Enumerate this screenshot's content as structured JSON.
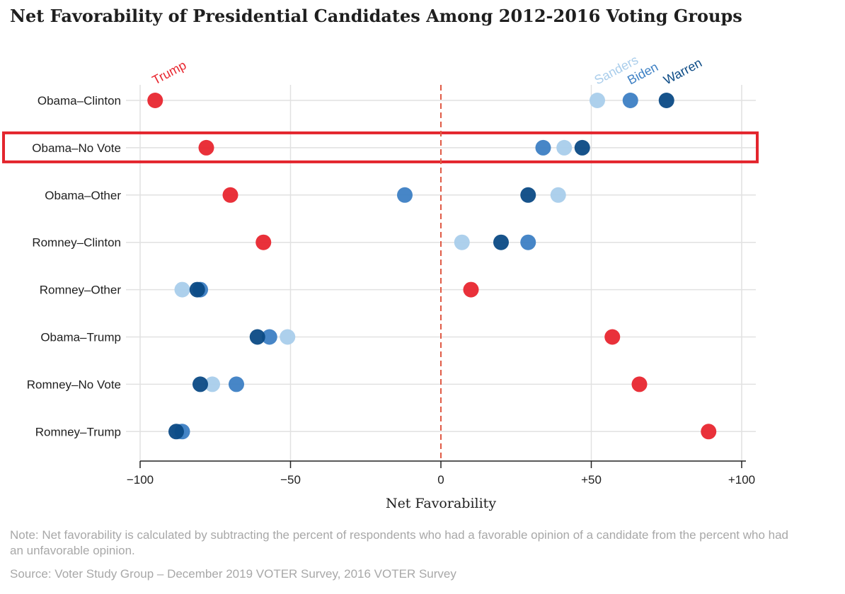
{
  "title": "Net Favorability of Presidential Candidates Among 2012-2016 Voting Groups",
  "note": "Note: Net favorability is calculated by subtracting the percent of respondents who had a favorable opinion of a candidate from the percent who had an unfavorable opinion.",
  "source": "Source: Voter Study Group – December 2019 VOTER Survey, 2016 VOTER Survey",
  "chart_data": {
    "type": "scatter",
    "title": "Net Favorability of Presidential Candidates Among 2012-2016 Voting Groups",
    "xlabel": "Net Favorability",
    "ylabel": "",
    "xlim": [
      -100,
      100
    ],
    "x_ticks": [
      -100,
      -50,
      0,
      50,
      100
    ],
    "x_tick_labels": [
      "−100",
      "−50",
      "0",
      "+50",
      "+100"
    ],
    "grid": true,
    "categories": [
      "Obama–Clinton",
      "Obama–No Vote",
      "Obama–Other",
      "Romney–Clinton",
      "Romney–Other",
      "Obama–Trump",
      "Romney–No Vote",
      "Romney–Trump"
    ],
    "highlighted_category": "Obama–No Vote",
    "reference_line_x": 0,
    "series": [
      {
        "name": "Trump",
        "color": "#e8262f",
        "values": [
          -95,
          -78,
          -70,
          -59,
          10,
          57,
          66,
          89
        ]
      },
      {
        "name": "Sanders",
        "color": "#a9cdeb",
        "values": [
          52,
          41,
          39,
          7,
          -86,
          -51,
          -76,
          -87
        ]
      },
      {
        "name": "Biden",
        "color": "#3d80c4",
        "values": [
          63,
          34,
          -12,
          29,
          -80,
          -57,
          -68,
          -86
        ]
      },
      {
        "name": "Warren",
        "color": "#0b4a85",
        "values": [
          75,
          47,
          29,
          20,
          -81,
          -61,
          -80,
          -88
        ]
      }
    ],
    "colors": {
      "highlight_box": "#e3252d",
      "reference_line": "#e05a45",
      "grid": "#e1e1e1"
    }
  }
}
